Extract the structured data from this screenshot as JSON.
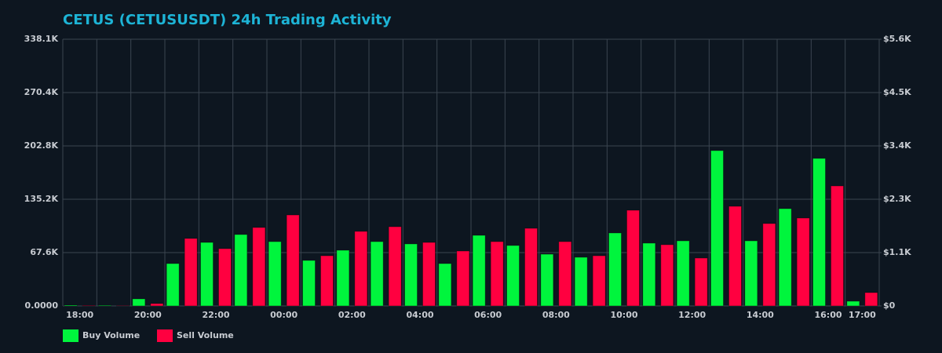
{
  "chart_data": {
    "type": "bar",
    "title": "CETUS (CETUSUSDT) 24h Trading Activity",
    "categories": [
      "18:00",
      null,
      "20:00",
      null,
      "22:00",
      null,
      "00:00",
      null,
      "02:00",
      null,
      "04:00",
      null,
      "06:00",
      null,
      "08:00",
      null,
      "10:00",
      null,
      "12:00",
      null,
      "14:00",
      null,
      "16:00",
      "17:00"
    ],
    "series": [
      {
        "name": "Buy Volume",
        "color": "#00f53d",
        "values": [
          1000,
          700,
          8950,
          53700,
          80500,
          90500,
          81500,
          57700,
          70600,
          81500,
          78600,
          53700,
          89500,
          76600,
          65600,
          61700,
          92500,
          79600,
          82500,
          196900,
          82500,
          123300,
          187000,
          6000
        ]
      },
      {
        "name": "Sell Volume",
        "color": "#ff0040",
        "values": [
          500,
          300,
          3000,
          85500,
          72600,
          99400,
          115300,
          63600,
          94500,
          100400,
          80500,
          69600,
          81500,
          98400,
          81500,
          63600,
          121300,
          77600,
          60700,
          126300,
          104400,
          111400,
          152100,
          16900
        ]
      }
    ],
    "ylim": [
      0,
      338050
    ],
    "yticks": [
      {
        "value": 0,
        "label": "0.0000"
      },
      {
        "value": 67610,
        "label": "67.6K"
      },
      {
        "value": 135220,
        "label": "135.2K"
      },
      {
        "value": 202830,
        "label": "202.8K"
      },
      {
        "value": 270440,
        "label": "270.4K"
      },
      {
        "value": 338050,
        "label": "338.1K"
      }
    ],
    "y2lim": [
      0,
      5630
    ],
    "y2ticks": [
      {
        "value": 0,
        "label": "$0"
      },
      {
        "value": 1126,
        "label": "$1.1K"
      },
      {
        "value": 2252,
        "label": "$2.3K"
      },
      {
        "value": 3378,
        "label": "$3.4K"
      },
      {
        "value": 4504,
        "label": "$4.5K"
      },
      {
        "value": 5630,
        "label": "$5.6K"
      }
    ],
    "grid": true
  }
}
